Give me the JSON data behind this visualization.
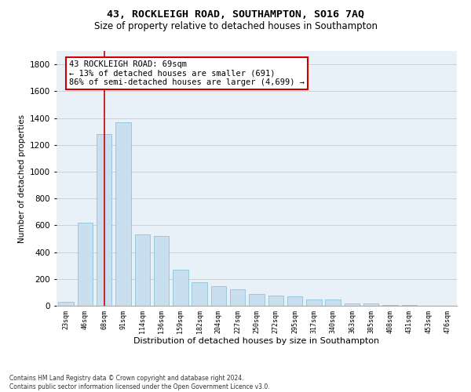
{
  "title": "43, ROCKLEIGH ROAD, SOUTHAMPTON, SO16 7AQ",
  "subtitle": "Size of property relative to detached houses in Southampton",
  "xlabel": "Distribution of detached houses by size in Southampton",
  "ylabel": "Number of detached properties",
  "categories": [
    "23sqm",
    "46sqm",
    "68sqm",
    "91sqm",
    "114sqm",
    "136sqm",
    "159sqm",
    "182sqm",
    "204sqm",
    "227sqm",
    "250sqm",
    "272sqm",
    "295sqm",
    "317sqm",
    "340sqm",
    "363sqm",
    "385sqm",
    "408sqm",
    "431sqm",
    "453sqm",
    "476sqm"
  ],
  "values": [
    30,
    620,
    1280,
    1370,
    530,
    520,
    270,
    175,
    145,
    120,
    90,
    75,
    70,
    45,
    45,
    20,
    15,
    8,
    8,
    2,
    2
  ],
  "bar_color": "#c9dff0",
  "bar_edge_color": "#7fbcd4",
  "vline_x": 2.0,
  "vline_color": "#cc0000",
  "annotation_text": "43 ROCKLEIGH ROAD: 69sqm\n← 13% of detached houses are smaller (691)\n86% of semi-detached houses are larger (4,699) →",
  "annotation_box_color": "#ffffff",
  "annotation_box_edge_color": "#cc0000",
  "ylim": [
    0,
    1900
  ],
  "yticks": [
    0,
    200,
    400,
    600,
    800,
    1000,
    1200,
    1400,
    1600,
    1800
  ],
  "footer": "Contains HM Land Registry data © Crown copyright and database right 2024.\nContains public sector information licensed under the Open Government Licence v3.0.",
  "grid_color": "#cccccc",
  "bg_color": "#e8f0f8",
  "title_fontsize": 9.5,
  "subtitle_fontsize": 8.5,
  "ylabel_fontsize": 7.5,
  "xlabel_fontsize": 8,
  "ytick_fontsize": 7.5,
  "xtick_fontsize": 6,
  "annotation_fontsize": 7.5,
  "footer_fontsize": 5.5
}
